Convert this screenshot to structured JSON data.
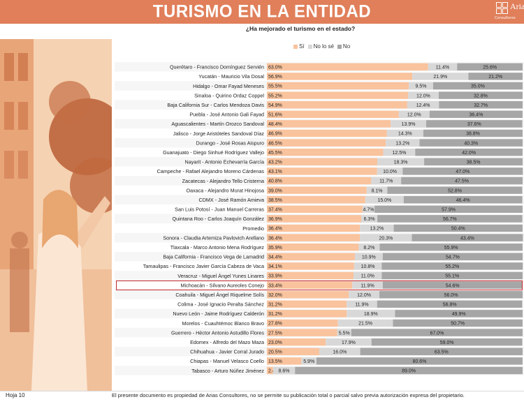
{
  "header": {
    "title": "TURISMO EN LA ENTIDAD",
    "logo_name": "Arias",
    "logo_sub": "Consultores"
  },
  "colors": {
    "si": "#f9c39d",
    "nolose": "#d8d8d8",
    "no": "#a6a6a6",
    "header": "#e07f5a",
    "highlight": "#c0272d"
  },
  "footer": {
    "page": "Hoja 10",
    "note": "El presente documento es propiedad de Arias Consultores, no se permite su publicación total o parcial salvo previa autorización expresa del propietario."
  },
  "chart_data": {
    "type": "bar",
    "stacked": true,
    "orientation": "horizontal",
    "title": "¿Ha mejorado el turismo en el estado?",
    "legend": [
      "Sí",
      "No lo sé",
      "No"
    ],
    "legend_position": "top",
    "xlim": [
      0,
      100
    ],
    "highlighted_category": "Michoacán - Silvano Aureoles Conejo",
    "categories": [
      "Querétaro - Francisco Domínguez Servién",
      "Yucatán  - Mauricio Vila Dosal",
      "Hidalgo - Omar Fayad Meneses",
      "Sinaloa - Quirino Ordaz Coppel",
      "Baja California Sur - Carlos Mendoza Davis",
      "Puebla - José Antonio Gali Fayad",
      "Aguascalientes - Martín Orozco Sandoval",
      "Jalisco - Jorge Aristóteles Sandoval Díaz",
      "Durango - José Rosas Aispuro",
      "Guanajuato - Diego Sinhué Rodríguez Vallejo",
      "Nayarit - Antonio Echevarría García",
      "Campeche - Rafael Alejandro Moreno Cárdenas",
      "Zacatecas - Alejandro Tello Cristerna",
      "Oaxaca  - Alejandro Murat Hinojosa",
      "CDMX - José Ramón Amieva",
      "San Luis Potosí - Juan Manuel Carreras",
      "Quintana Roo - Carlos Joaquín González",
      "Promedio",
      "Sonora - Claudia Artemiza Pavlovich Arellano",
      "Tlaxcala - Marco Antonio Mena Rodríguez",
      "Baja California - Francisco Vega de Lamadrid",
      "Tamaulipas - Francisco Javier García Cabeza de Vaca",
      "Veracruz  - Miguel Ángel Yunes Linares",
      "Michoacán - Silvano Aureoles Conejo",
      "Coahuila - Miguel Ángel Riquelme Solís",
      "Colima - José Ignacio Peralta Sánchez",
      "Nuevo León  - Jaime Rodríguez Calderón",
      "Morelos - Cuauhtémoc Blanco Bravo",
      "Guerrero - Héctor Antonio Astudillo Flores",
      "Edomex - Alfredo del Mazo Maza",
      "Chihuahua - Javier Corral Jurado",
      "Chiapas - Manuel Velasco Coello",
      "Tabasco - Arturo Núñez Jiménez"
    ],
    "series": [
      {
        "name": "Sí",
        "values": [
          63.0,
          56.9,
          55.5,
          55.2,
          54.9,
          51.6,
          48.4,
          46.9,
          46.5,
          45.5,
          43.2,
          43.1,
          40.8,
          39.0,
          38.5,
          37.4,
          36.9,
          36.4,
          36.4,
          35.9,
          34.4,
          34.1,
          33.9,
          33.4,
          32.0,
          31.2,
          31.2,
          27.8,
          27.5,
          23.0,
          20.5,
          13.5,
          2.4
        ]
      },
      {
        "name": "No lo sé",
        "values": [
          11.4,
          21.9,
          9.5,
          12.0,
          12.4,
          12.0,
          13.9,
          14.3,
          13.2,
          12.5,
          18.3,
          10.0,
          11.7,
          8.1,
          15.0,
          4.7,
          6.3,
          13.2,
          20.3,
          8.2,
          10.9,
          10.8,
          11.0,
          11.9,
          12.0,
          11.9,
          18.9,
          21.5,
          5.5,
          17.9,
          16.0,
          5.9,
          8.6
        ]
      },
      {
        "name": "No",
        "values": [
          25.6,
          21.2,
          35.0,
          32.8,
          32.7,
          36.4,
          37.6,
          38.8,
          40.3,
          42.0,
          38.5,
          47.0,
          47.5,
          52.8,
          46.4,
          57.9,
          56.7,
          50.4,
          43.4,
          55.9,
          54.7,
          55.2,
          55.1,
          54.6,
          56.0,
          56.8,
          49.9,
          50.7,
          67.0,
          59.0,
          63.5,
          80.6,
          89.0
        ]
      }
    ]
  }
}
